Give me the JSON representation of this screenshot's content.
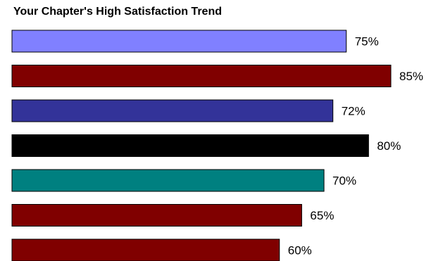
{
  "chart_data": {
    "type": "bar",
    "orientation": "horizontal",
    "title": "Your Chapter's High Satisfaction Trend",
    "xlabel": "",
    "ylabel": "",
    "xlim": [
      0,
      85
    ],
    "grid": false,
    "legend": "none",
    "values": [
      75,
      85,
      72,
      80,
      70,
      65,
      60
    ],
    "labels": [
      "75%",
      "85%",
      "72%",
      "80%",
      "70%",
      "65%",
      "60%"
    ],
    "colors": [
      "#8080ff",
      "#800000",
      "#333399",
      "#000000",
      "#008080",
      "#800000",
      "#800000"
    ]
  }
}
